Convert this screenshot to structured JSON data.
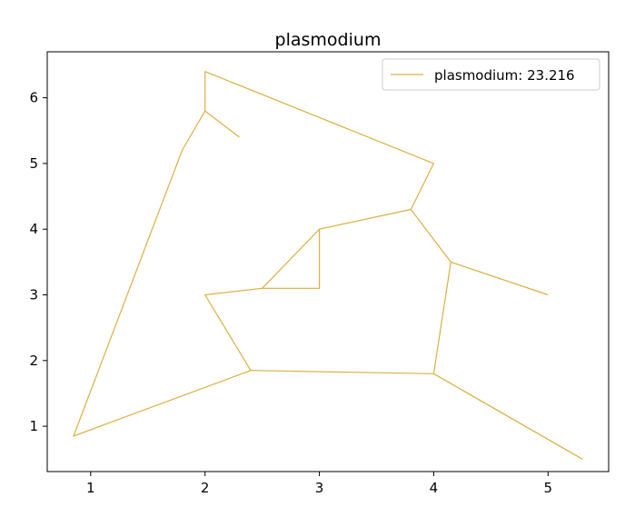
{
  "chart_data": {
    "type": "line",
    "title": "plasmodium",
    "xlabel": "",
    "ylabel": "",
    "xlim": [
      0.62,
      5.53
    ],
    "ylim": [
      0.31,
      6.7
    ],
    "xticks": [
      1,
      2,
      3,
      4,
      5
    ],
    "yticks": [
      1,
      2,
      3,
      4,
      5,
      6
    ],
    "grid": false,
    "legend": {
      "placement": "upper right"
    },
    "series": [
      {
        "name": "plasmodium: 23.216",
        "color": "#dbb040",
        "segments": [
          [
            [
              2.3,
              5.4
            ],
            [
              2.0,
              5.8
            ],
            [
              2.0,
              6.4
            ],
            [
              4.0,
              5.0
            ],
            [
              3.8,
              4.3
            ],
            [
              4.15,
              3.5
            ],
            [
              5.0,
              3.0
            ]
          ],
          [
            [
              2.0,
              5.8
            ],
            [
              1.8,
              5.2
            ],
            [
              0.85,
              0.85
            ],
            [
              2.4,
              1.85
            ],
            [
              4.0,
              1.8
            ],
            [
              5.3,
              0.5
            ]
          ],
          [
            [
              4.15,
              3.5
            ],
            [
              4.0,
              1.8
            ]
          ],
          [
            [
              3.8,
              4.3
            ],
            [
              3.0,
              4.0
            ],
            [
              2.5,
              3.1
            ],
            [
              3.0,
              3.1
            ],
            [
              3.0,
              4.0
            ]
          ],
          [
            [
              2.5,
              3.1
            ],
            [
              2.0,
              3.0
            ],
            [
              2.4,
              1.85
            ]
          ]
        ]
      }
    ]
  }
}
